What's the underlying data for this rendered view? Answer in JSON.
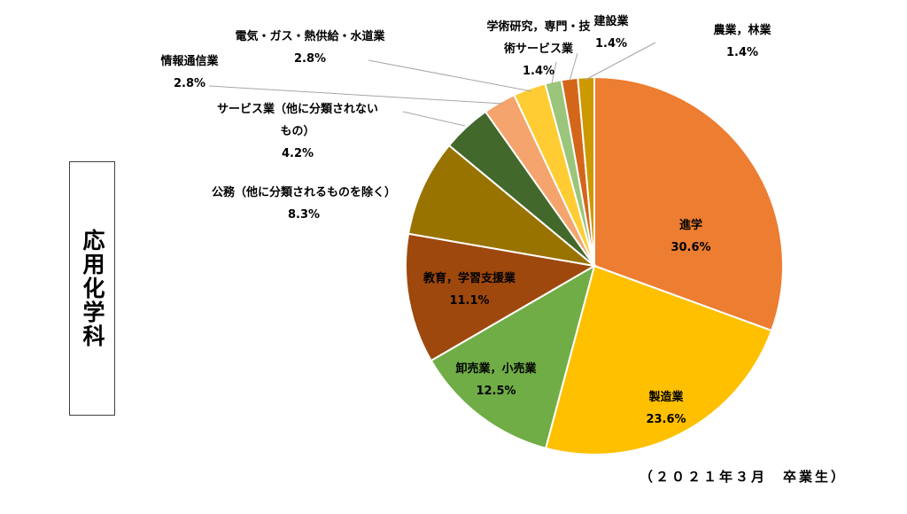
{
  "department_label": "応用化学科",
  "footnote": "（２０２１年３月　卒業生）",
  "chart_data": {
    "type": "pie",
    "title": "",
    "start_angle_deg": 0,
    "direction": "clockwise",
    "slices": [
      {
        "label": "進学",
        "label_lines": [
          "進学"
        ],
        "value": 30.6,
        "display": "30.6%",
        "color": "#ED7D31"
      },
      {
        "label": "製造業",
        "label_lines": [
          "製造業"
        ],
        "value": 23.6,
        "display": "23.6%",
        "color": "#FFC000"
      },
      {
        "label": "卸売業，小売業",
        "label_lines": [
          "卸売業，小売業"
        ],
        "value": 12.5,
        "display": "12.5%",
        "color": "#70AD47"
      },
      {
        "label": "教育，学習支援業",
        "label_lines": [
          "教育，学習支援業"
        ],
        "value": 11.1,
        "display": "11.1%",
        "color": "#9E480E"
      },
      {
        "label": "公務（他に分類されるものを除く）",
        "label_lines": [
          "公務（他に分類されるものを除く）"
        ],
        "value": 8.3,
        "display": "8.3%",
        "color": "#997300"
      },
      {
        "label": "サービス業（他に分類されないもの）",
        "label_lines": [
          "サービス業（他に分類されない",
          "もの）"
        ],
        "value": 4.2,
        "display": "4.2%",
        "color": "#43682B"
      },
      {
        "label": "情報通信業",
        "label_lines": [
          "情報通信業"
        ],
        "value": 2.8,
        "display": "2.8%",
        "color": "#F4A46C"
      },
      {
        "label": "電気・ガス・熱供給・水道業",
        "label_lines": [
          "電気・ガス・熱供給・水道業"
        ],
        "value": 2.8,
        "display": "2.8%",
        "color": "#FFCD33"
      },
      {
        "label": "学術研究，専門・技術サービス業",
        "label_lines": [
          "学術研究，専門・技",
          "術サービス業"
        ],
        "value": 1.4,
        "display": "1.4%",
        "color": "#9BC57A"
      },
      {
        "label": "建設業",
        "label_lines": [
          "建設業"
        ],
        "value": 1.4,
        "display": "1.4%",
        "color": "#D4661A"
      },
      {
        "label": "農業，林業",
        "label_lines": [
          "農業，林業"
        ],
        "value": 1.4,
        "display": "1.4%",
        "color": "#CC9900"
      }
    ]
  }
}
